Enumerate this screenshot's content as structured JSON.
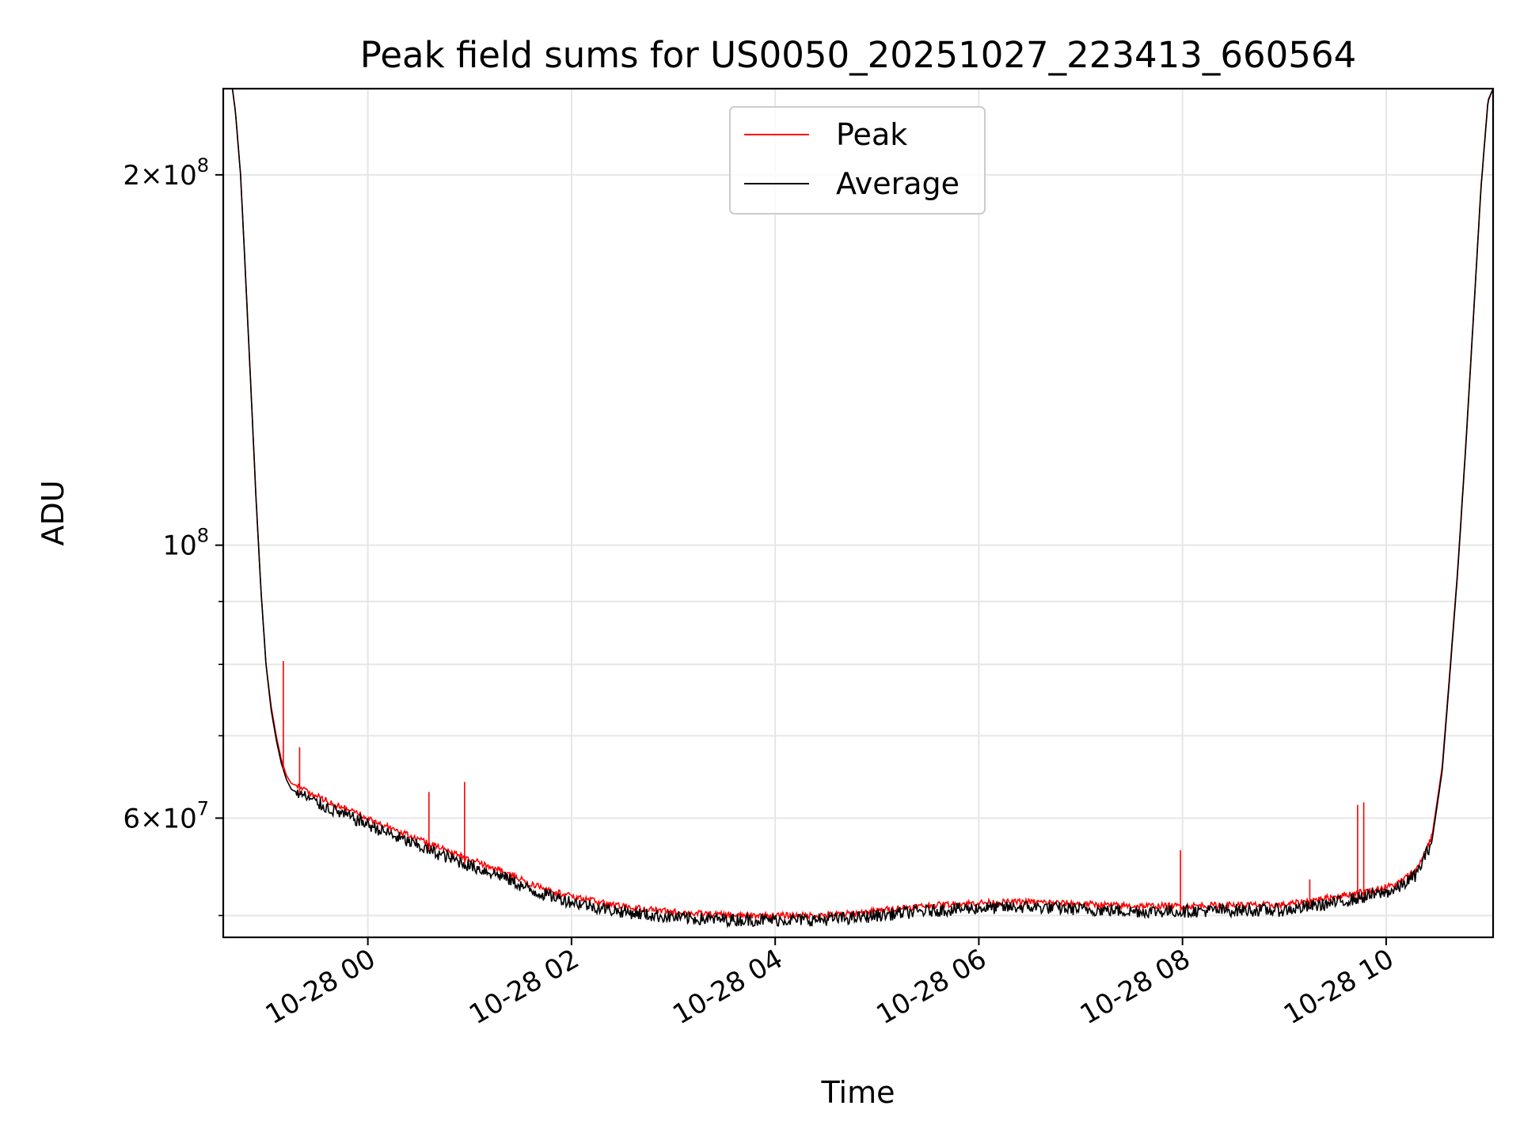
{
  "chart_data": {
    "type": "line",
    "title": "Peak field sums for US0050_20251027_223413_660564",
    "xlabel": "Time",
    "ylabel": "ADU",
    "yscale": "log",
    "ylim": [
      48000000,
      235000000
    ],
    "xlim_hours": [
      -1.42,
      11.05
    ],
    "grid": true,
    "legend_position": "top-center",
    "x_ticks": [
      {
        "hours": 0,
        "label": "10-28 00"
      },
      {
        "hours": 2,
        "label": "10-28 02"
      },
      {
        "hours": 4,
        "label": "10-28 04"
      },
      {
        "hours": 6,
        "label": "10-28 06"
      },
      {
        "hours": 8,
        "label": "10-28 08"
      },
      {
        "hours": 10,
        "label": "10-28 10"
      }
    ],
    "y_major_ticks": [
      {
        "value": 100000000,
        "base": "10",
        "exp": "8"
      },
      {
        "value": 200000000,
        "mant": "2",
        "base": "10",
        "exp": "8"
      },
      {
        "value": 60000000,
        "mant": "6",
        "base": "10",
        "exp": "7"
      }
    ],
    "y_minor_ticks": [
      50000000,
      70000000,
      80000000,
      90000000,
      300000000
    ],
    "series": [
      {
        "name": "Peak",
        "color": "#ff0000",
        "x_hours": [
          -1.42,
          -1.33,
          -1.3,
          -1.25,
          -1.2,
          -1.15,
          -1.1,
          -1.05,
          -1.0,
          -0.95,
          -0.9,
          -0.85,
          -0.8,
          -0.75,
          -0.7,
          -0.62,
          -0.5,
          -0.3,
          0,
          0.3,
          0.6,
          1.0,
          1.3,
          1.4,
          1.6,
          2.0,
          2.4,
          2.8,
          3.2,
          3.6,
          4.0,
          4.4,
          4.8,
          5.2,
          5.6,
          6.0,
          6.5,
          7.0,
          7.5,
          8.0,
          8.5,
          9.0,
          9.5,
          9.9,
          10.1,
          10.3,
          10.45,
          10.55,
          10.62,
          10.7,
          10.78,
          10.86,
          10.93,
          11.0,
          11.05
        ],
        "values": [
          235000000,
          235000000,
          225000000,
          200000000,
          165000000,
          135000000,
          110000000,
          92000000,
          80000000,
          74000000,
          70000000,
          67000000,
          65000000,
          64000000,
          63800000,
          63300000,
          62500000,
          61500000,
          60000000,
          58500000,
          57200000,
          55500000,
          54500000,
          54000000,
          53000000,
          51800000,
          51000000,
          50500000,
          50200000,
          50000000,
          50000000,
          50000000,
          50200000,
          50700000,
          51000000,
          51200000,
          51300000,
          51100000,
          50900000,
          50900000,
          51000000,
          51000000,
          51800000,
          52500000,
          53000000,
          54500000,
          58000000,
          66000000,
          78000000,
          95000000,
          120000000,
          155000000,
          195000000,
          230000000,
          235000000
        ]
      },
      {
        "name": "Average",
        "color": "#000000",
        "x_hours": [
          -1.42,
          -1.33,
          -1.3,
          -1.25,
          -1.2,
          -1.15,
          -1.1,
          -1.05,
          -1.0,
          -0.95,
          -0.9,
          -0.85,
          -0.8,
          -0.75,
          -0.7,
          -0.62,
          -0.5,
          -0.3,
          0,
          0.3,
          0.6,
          1.0,
          1.3,
          1.4,
          1.6,
          2.0,
          2.4,
          2.8,
          3.2,
          3.6,
          4.0,
          4.4,
          4.8,
          5.2,
          5.6,
          6.0,
          6.5,
          7.0,
          7.5,
          8.0,
          8.5,
          9.0,
          9.5,
          9.9,
          10.1,
          10.3,
          10.45,
          10.55,
          10.62,
          10.7,
          10.78,
          10.86,
          10.93,
          11.0,
          11.05
        ],
        "values": [
          235000000,
          235000000,
          225000000,
          200000000,
          165000000,
          135000000,
          110000000,
          92000000,
          80000000,
          73500000,
          69500000,
          66500000,
          64500000,
          63300000,
          63000000,
          62500000,
          61700000,
          60700000,
          59300000,
          57800000,
          56500000,
          54900000,
          53900000,
          53400000,
          52400000,
          51300000,
          50500000,
          50000000,
          49700000,
          49600000,
          49600000,
          49600000,
          49800000,
          50200000,
          50500000,
          50700000,
          50800000,
          50600000,
          50400000,
          50400000,
          50500000,
          50500000,
          51200000,
          52000000,
          52500000,
          54000000,
          57500000,
          65500000,
          77500000,
          94500000,
          119500000,
          154500000,
          194500000,
          229500000,
          235000000
        ]
      }
    ],
    "peak_spikes": [
      {
        "hour": -0.83,
        "value": 80500000
      },
      {
        "hour": -0.67,
        "value": 68500000
      },
      {
        "hour": 0.6,
        "value": 63000000
      },
      {
        "hour": 0.95,
        "value": 64200000
      },
      {
        "hour": 7.98,
        "value": 56500000
      },
      {
        "hour": 9.72,
        "value": 61500000
      },
      {
        "hour": 9.78,
        "value": 61800000
      },
      {
        "hour": 9.25,
        "value": 53500000
      }
    ]
  },
  "legend": {
    "peak_label": "Peak",
    "average_label": "Average"
  }
}
